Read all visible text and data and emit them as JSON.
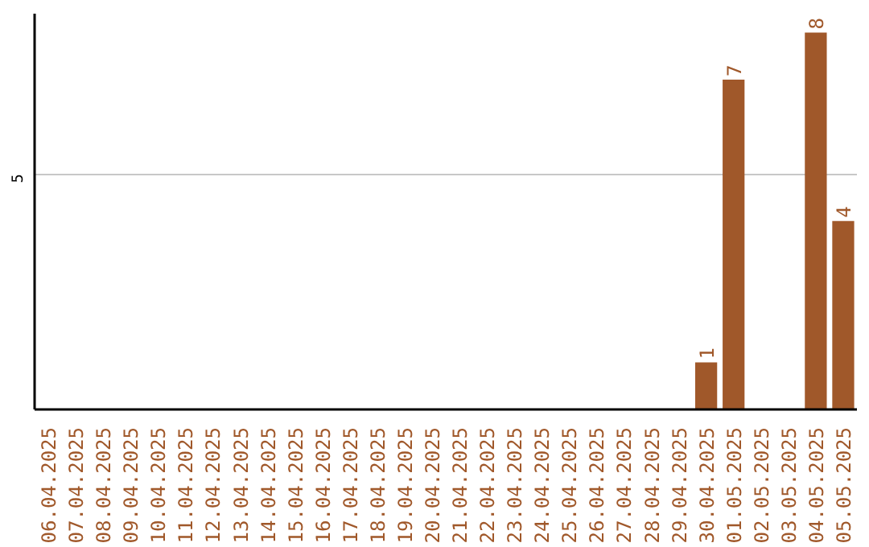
{
  "chart_data": {
    "type": "bar",
    "categories": [
      "06.04.2025",
      "07.04.2025",
      "08.04.2025",
      "09.04.2025",
      "10.04.2025",
      "11.04.2025",
      "12.04.2025",
      "13.04.2025",
      "14.04.2025",
      "15.04.2025",
      "16.04.2025",
      "17.04.2025",
      "18.04.2025",
      "19.04.2025",
      "20.04.2025",
      "21.04.2025",
      "22.04.2025",
      "23.04.2025",
      "24.04.2025",
      "25.04.2025",
      "26.04.2025",
      "27.04.2025",
      "28.04.2025",
      "29.04.2025",
      "30.04.2025",
      "01.05.2025",
      "02.05.2025",
      "03.05.2025",
      "04.05.2025",
      "05.05.2025"
    ],
    "values": [
      null,
      null,
      null,
      null,
      null,
      null,
      null,
      null,
      null,
      null,
      null,
      null,
      null,
      null,
      null,
      null,
      null,
      null,
      null,
      null,
      null,
      null,
      null,
      null,
      1,
      7,
      null,
      null,
      8,
      4
    ],
    "value_labels": [
      null,
      null,
      null,
      null,
      null,
      null,
      null,
      null,
      null,
      null,
      null,
      null,
      null,
      null,
      null,
      null,
      null,
      null,
      null,
      null,
      null,
      null,
      null,
      null,
      "1",
      "7",
      null,
      null,
      "8",
      "4"
    ],
    "color": "#a0582a",
    "ylim": [
      0,
      8.4
    ],
    "yticks": [
      5
    ],
    "grid": "y"
  }
}
